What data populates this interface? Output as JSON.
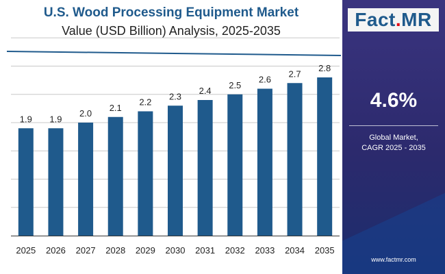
{
  "header": {
    "title": "U.S. Wood Processing Equipment Market",
    "subtitle": "Value (USD Billion) Analysis, 2025-2035"
  },
  "sidebar": {
    "logo": {
      "part1": "Fact",
      "dot": ".",
      "part2": "MR"
    },
    "cagr_value": "4.6%",
    "cagr_label_line1": "Global Market,",
    "cagr_label_line2": "CAGR 2025 - 2035",
    "website": "www.factmr.com"
  },
  "colors": {
    "bar": "#1f5a8c",
    "title": "#1f5a8c",
    "grid": "#c8c8c8",
    "sidebar": "#2c2a6d"
  },
  "chart_data": {
    "type": "bar",
    "title": "U.S. Wood Processing Equipment Market",
    "subtitle": "Value (USD Billion) Analysis, 2025-2035",
    "categories": [
      "2025",
      "2026",
      "2027",
      "2028",
      "2029",
      "2030",
      "2031",
      "2032",
      "2033",
      "2034",
      "2035"
    ],
    "values": [
      1.9,
      1.9,
      2.0,
      2.1,
      2.2,
      2.3,
      2.4,
      2.5,
      2.6,
      2.7,
      2.8
    ],
    "value_labels": [
      "1.9",
      "1.9",
      "2.0",
      "2.1",
      "2.2",
      "2.3",
      "2.4",
      "2.5",
      "2.6",
      "2.7",
      "2.8"
    ],
    "xlabel": "",
    "ylabel": "",
    "ylim": [
      0,
      3.65
    ],
    "grid": true,
    "legend": "none"
  }
}
